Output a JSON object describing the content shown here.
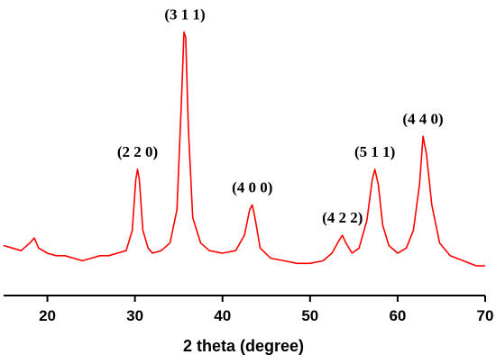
{
  "chart_data": {
    "type": "line",
    "title": "",
    "xlabel": "2 theta (degree)",
    "ylabel": "",
    "xlim": [
      15,
      70
    ],
    "ylim": [
      0,
      100
    ],
    "x_ticks": [
      "20",
      "30",
      "40",
      "50",
      "60",
      "70"
    ],
    "grid": false,
    "legend": "none",
    "line_color": "#ff0000",
    "series": [
      {
        "name": "",
        "x": [
          15,
          16,
          17,
          18,
          18.5,
          19,
          20,
          21,
          22,
          23,
          24,
          25,
          26,
          27,
          28,
          29,
          29.7,
          30.1,
          30.3,
          30.5,
          30.9,
          31.5,
          32,
          33,
          34,
          34.8,
          35.3,
          35.6,
          35.8,
          36.1,
          36.6,
          37.5,
          38.5,
          40,
          41.5,
          42.5,
          43.1,
          43.4,
          43.7,
          44.3,
          45.5,
          47,
          48.5,
          50,
          51.5,
          52.5,
          53.3,
          53.7,
          54.1,
          54.8,
          55.6,
          56.5,
          57.1,
          57.4,
          57.8,
          58.3,
          59,
          60,
          61,
          61.8,
          62.5,
          62.9,
          63.3,
          63.9,
          64.8,
          66,
          67.5,
          69,
          70
        ],
        "y": [
          14,
          13,
          12,
          15,
          17,
          13,
          11,
          10,
          10,
          9,
          8,
          9,
          10,
          10,
          11,
          12,
          20,
          40,
          44,
          40,
          20,
          13,
          11,
          12,
          15,
          28,
          70,
          98,
          96,
          60,
          25,
          15,
          12,
          11,
          12,
          18,
          28,
          30,
          25,
          13,
          9,
          8,
          7,
          7,
          8,
          11,
          16,
          18,
          15,
          11,
          13,
          24,
          40,
          44,
          38,
          22,
          14,
          11,
          13,
          20,
          38,
          57,
          50,
          30,
          15,
          10,
          8,
          6,
          6
        ]
      }
    ],
    "annotations": [
      {
        "text": "(2 2 0)",
        "x": 30.3
      },
      {
        "text": "(3 1 1)",
        "x": 35.7
      },
      {
        "text": "(4 0 0)",
        "x": 43.4
      },
      {
        "text": "(4 2 2)",
        "x": 53.7
      },
      {
        "text": "(5 1 1)",
        "x": 57.4
      },
      {
        "text": "(4 4 0)",
        "x": 62.9
      }
    ]
  }
}
